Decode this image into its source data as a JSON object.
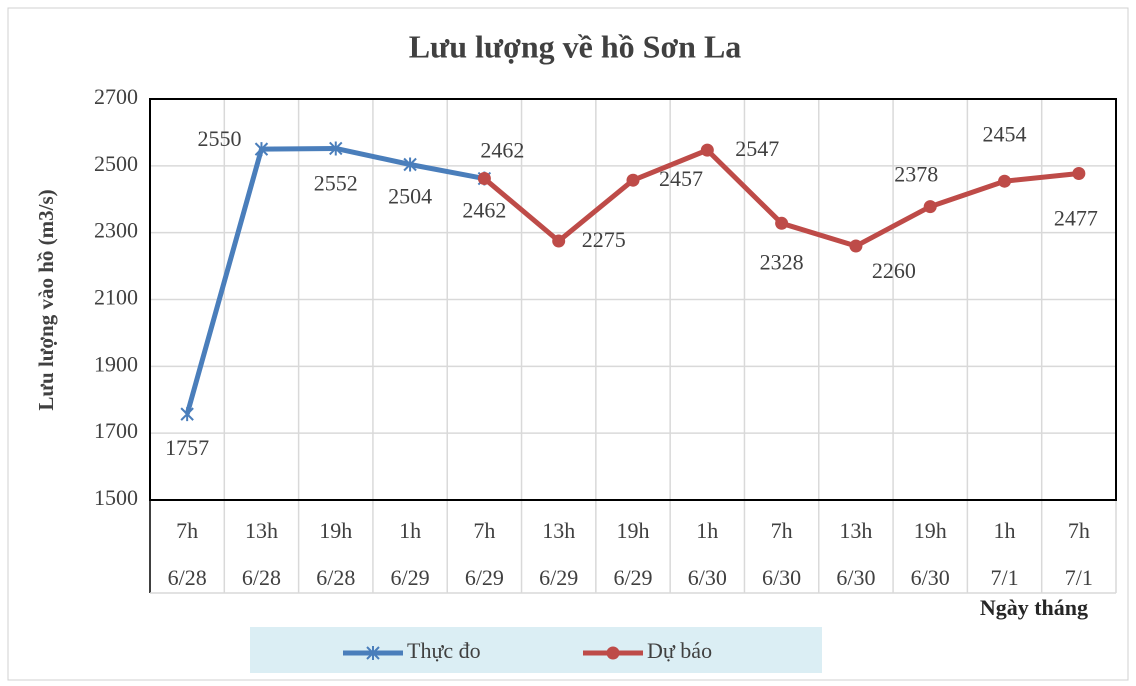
{
  "chart_data": {
    "type": "line",
    "title": "Lưu lượng về hồ Sơn La",
    "y_label": "Lưu lượng vào hồ (m3/s)",
    "x_label": "Ngày tháng",
    "categories": [
      [
        "7h",
        "6/28"
      ],
      [
        "13h",
        "6/28"
      ],
      [
        "19h",
        "6/28"
      ],
      [
        "1h",
        "6/29"
      ],
      [
        "7h",
        "6/29"
      ],
      [
        "13h",
        "6/29"
      ],
      [
        "19h",
        "6/29"
      ],
      [
        "1h",
        "6/30"
      ],
      [
        "7h",
        "6/30"
      ],
      [
        "13h",
        "6/30"
      ],
      [
        "19h",
        "6/30"
      ],
      [
        "1h",
        "7/1"
      ],
      [
        "7h",
        "7/1"
      ]
    ],
    "series": [
      {
        "name": "Thực đo",
        "color": "#4a7ebb",
        "marker": "star",
        "values": [
          1757,
          2550,
          2552,
          2504,
          2462,
          null,
          null,
          null,
          null,
          null,
          null,
          null,
          null
        ]
      },
      {
        "name": "Dự báo",
        "color": "#be4b48",
        "marker": "circle",
        "values": [
          null,
          null,
          null,
          null,
          2462,
          2275,
          2457,
          2547,
          2328,
          2260,
          2378,
          2454,
          2477
        ]
      }
    ],
    "ylim": [
      1500,
      2700
    ],
    "yticks": [
      1500,
      1700,
      1900,
      2100,
      2300,
      2500,
      2700
    ],
    "grid": true
  }
}
